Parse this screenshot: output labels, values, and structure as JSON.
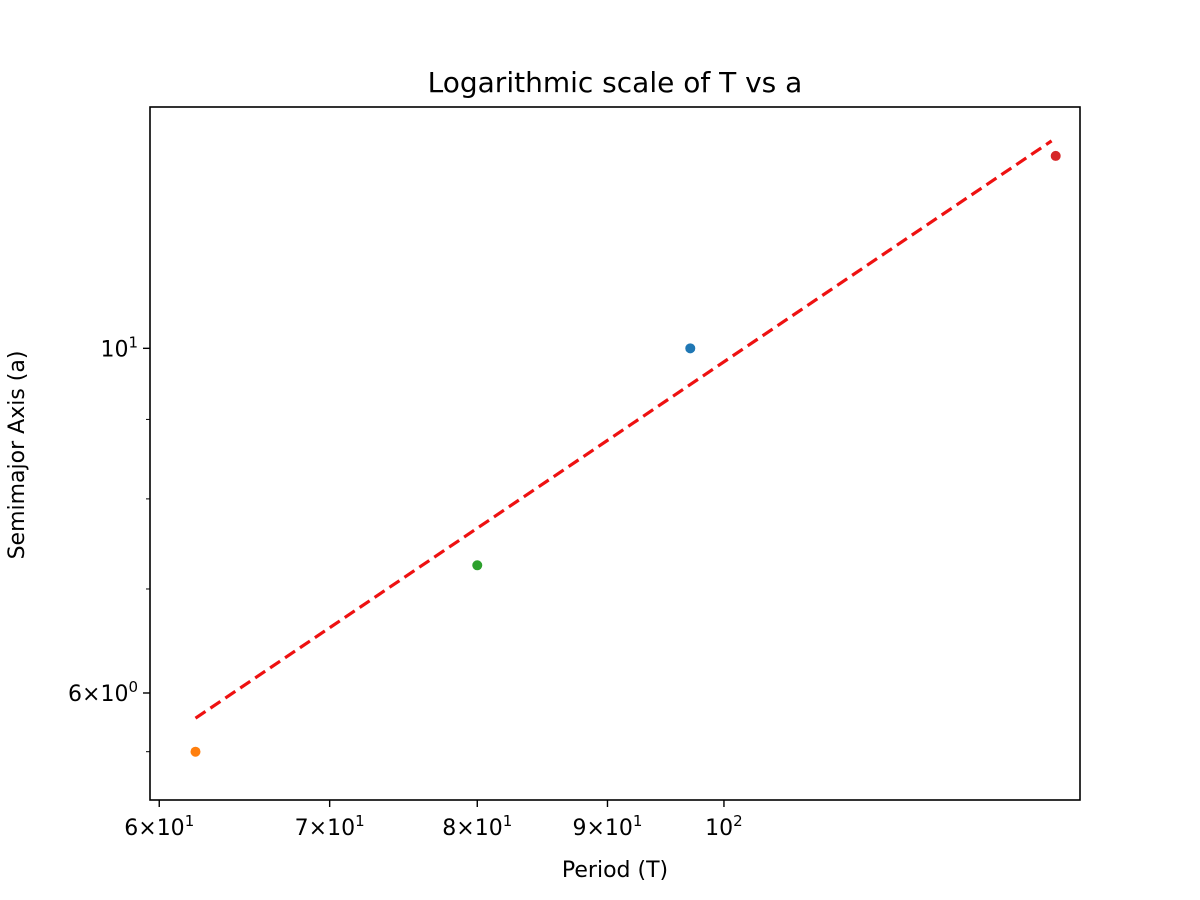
{
  "chart_data": {
    "type": "scatter",
    "title": "Logarithmic scale of T vs a",
    "xlabel": "Period (T)",
    "ylabel": "Semimajor Axis (a)",
    "xscale": "log",
    "yscale": "log",
    "xlim": [
      59.5,
      138
    ],
    "ylim": [
      5.12,
      14.3
    ],
    "grid": false,
    "x_ticks": [
      {
        "value": 60,
        "mantissa": "6",
        "base": "10",
        "exp": "1"
      },
      {
        "value": 70,
        "mantissa": "7",
        "base": "10",
        "exp": "1"
      },
      {
        "value": 80,
        "mantissa": "8",
        "base": "10",
        "exp": "1"
      },
      {
        "value": 90,
        "mantissa": "9",
        "base": "10",
        "exp": "1"
      },
      {
        "value": 100,
        "mantissa": "",
        "base": "10",
        "exp": "2"
      }
    ],
    "y_ticks": [
      {
        "value": 6,
        "mantissa": "6",
        "base": "10",
        "exp": "0"
      },
      {
        "value": 10,
        "mantissa": "",
        "base": "10",
        "exp": "1"
      }
    ],
    "y_minor_ticks": [
      5.5,
      7,
      8,
      9
    ],
    "points": [
      {
        "x": 97,
        "y": 10,
        "color": "#1f77b4"
      },
      {
        "x": 62,
        "y": 5.5,
        "color": "#ff7f0e"
      },
      {
        "x": 80,
        "y": 7.25,
        "color": "#2ca02c"
      },
      {
        "x": 135,
        "y": 13.3,
        "color": "#d62728"
      }
    ],
    "fit_line": {
      "x": [
        62,
        134.5
      ],
      "y": [
        5.78,
        13.6
      ],
      "color": "#ee1111",
      "style": "dashed"
    }
  }
}
